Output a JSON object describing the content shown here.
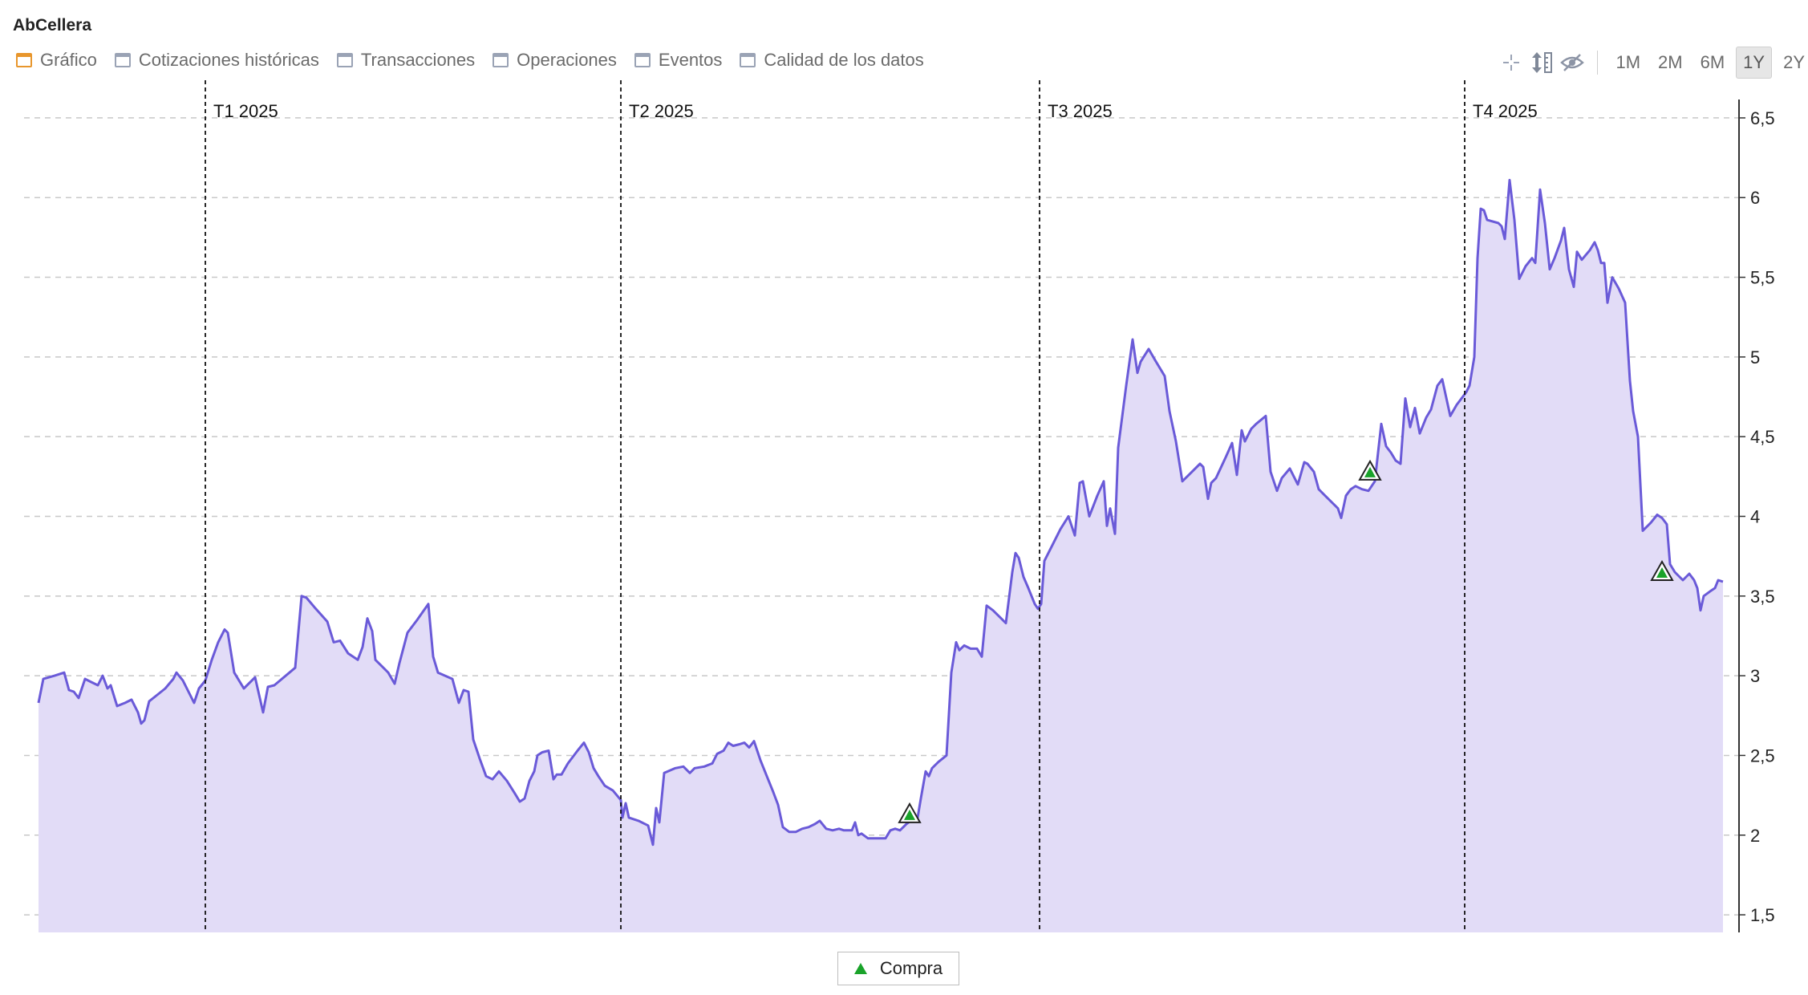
{
  "app": {
    "title": "AbCellera"
  },
  "tabs": [
    {
      "label": "Gráfico",
      "active": true
    },
    {
      "label": "Cotizaciones históricas",
      "active": false
    },
    {
      "label": "Transacciones",
      "active": false
    },
    {
      "label": "Operaciones",
      "active": false
    },
    {
      "label": "Eventos",
      "active": false
    },
    {
      "label": "Calidad de los datos",
      "active": false
    }
  ],
  "toolbar": {
    "icons": [
      "crosshair-icon",
      "vertical-scale-icon",
      "hide-icon"
    ],
    "ranges": [
      {
        "label": "1M",
        "active": false
      },
      {
        "label": "2M",
        "active": false
      },
      {
        "label": "6M",
        "active": false
      },
      {
        "label": "1Y",
        "active": true
      },
      {
        "label": "2Y",
        "active": false
      }
    ]
  },
  "legend": {
    "label": "Compra",
    "color": "#1aa32a"
  },
  "colors": {
    "line": "#6a5ad8",
    "fill": "#e2dcf7",
    "buy": "#1aa32a"
  },
  "chart_data": {
    "type": "area",
    "xlabel": "",
    "ylabel": "",
    "ylim": [
      1.45,
      6.55
    ],
    "xlim": [
      0,
      1050
    ],
    "y_ticks": [
      1.5,
      2,
      2.5,
      3,
      3.5,
      4,
      4.5,
      5,
      5.5,
      6,
      6.5
    ],
    "y_tick_labels": [
      "1,5",
      "2",
      "2,5",
      "3",
      "3,5",
      "4",
      "4,5",
      "5",
      "5,5",
      "6",
      "6,5"
    ],
    "grid": "horizontal-dashed",
    "quarters": [
      {
        "label": "T1 2025",
        "x": 104
      },
      {
        "label": "T2 2025",
        "x": 363
      },
      {
        "label": "T3 2025",
        "x": 624
      },
      {
        "label": "T4 2025",
        "x": 889
      }
    ],
    "series": [
      {
        "points": [
          [
            0,
            2.83
          ],
          [
            3,
            2.98
          ],
          [
            10,
            3.0
          ],
          [
            16,
            3.02
          ],
          [
            19,
            2.91
          ],
          [
            22,
            2.9
          ],
          [
            25,
            2.86
          ],
          [
            29,
            2.98
          ],
          [
            33,
            2.96
          ],
          [
            37,
            2.94
          ],
          [
            40,
            3.0
          ],
          [
            43,
            2.92
          ],
          [
            45,
            2.94
          ],
          [
            49,
            2.81
          ],
          [
            54,
            2.83
          ],
          [
            58,
            2.85
          ],
          [
            62,
            2.77
          ],
          [
            64,
            2.7
          ],
          [
            66,
            2.72
          ],
          [
            69,
            2.84
          ],
          [
            74,
            2.88
          ],
          [
            79,
            2.92
          ],
          [
            84,
            2.98
          ],
          [
            86,
            3.02
          ],
          [
            90,
            2.97
          ],
          [
            94,
            2.89
          ],
          [
            97,
            2.83
          ],
          [
            100,
            2.92
          ],
          [
            104,
            2.97
          ],
          [
            108,
            3.1
          ],
          [
            112,
            3.21
          ],
          [
            116,
            3.29
          ],
          [
            118,
            3.27
          ],
          [
            122,
            3.02
          ],
          [
            128,
            2.92
          ],
          [
            135,
            2.99
          ],
          [
            140,
            2.77
          ],
          [
            143,
            2.93
          ],
          [
            147,
            2.94
          ],
          [
            160,
            3.05
          ],
          [
            164,
            3.5
          ],
          [
            167,
            3.49
          ],
          [
            172,
            3.43
          ],
          [
            180,
            3.34
          ],
          [
            184,
            3.21
          ],
          [
            188,
            3.22
          ],
          [
            193,
            3.14
          ],
          [
            199,
            3.1
          ],
          [
            202,
            3.18
          ],
          [
            205,
            3.36
          ],
          [
            208,
            3.28
          ],
          [
            210,
            3.1
          ],
          [
            214,
            3.06
          ],
          [
            218,
            3.02
          ],
          [
            222,
            2.95
          ],
          [
            225,
            3.08
          ],
          [
            230,
            3.27
          ],
          [
            236,
            3.35
          ],
          [
            243,
            3.45
          ],
          [
            246,
            3.12
          ],
          [
            249,
            3.02
          ],
          [
            258,
            2.98
          ],
          [
            262,
            2.83
          ],
          [
            265,
            2.91
          ],
          [
            268,
            2.9
          ],
          [
            271,
            2.6
          ],
          [
            275,
            2.48
          ],
          [
            279,
            2.37
          ],
          [
            283,
            2.35
          ],
          [
            287,
            2.4
          ],
          [
            292,
            2.34
          ],
          [
            297,
            2.26
          ],
          [
            300,
            2.21
          ],
          [
            303,
            2.23
          ],
          [
            306,
            2.34
          ],
          [
            309,
            2.4
          ],
          [
            311,
            2.5
          ],
          [
            314,
            2.52
          ],
          [
            318,
            2.53
          ],
          [
            321,
            2.35
          ],
          [
            323,
            2.38
          ],
          [
            326,
            2.38
          ],
          [
            330,
            2.45
          ],
          [
            336,
            2.53
          ],
          [
            340,
            2.58
          ],
          [
            343,
            2.52
          ],
          [
            346,
            2.42
          ],
          [
            349,
            2.37
          ],
          [
            353,
            2.31
          ],
          [
            358,
            2.28
          ],
          [
            363,
            2.22
          ],
          [
            364,
            2.11
          ],
          [
            366,
            2.2
          ],
          [
            368,
            2.11
          ],
          [
            374,
            2.09
          ],
          [
            380,
            2.06
          ],
          [
            383,
            1.94
          ],
          [
            385,
            2.17
          ],
          [
            387,
            2.08
          ],
          [
            390,
            2.39
          ],
          [
            397,
            2.42
          ],
          [
            402,
            2.43
          ],
          [
            406,
            2.39
          ],
          [
            409,
            2.42
          ],
          [
            415,
            2.43
          ],
          [
            420,
            2.45
          ],
          [
            423,
            2.51
          ],
          [
            427,
            2.53
          ],
          [
            430,
            2.58
          ],
          [
            433,
            2.56
          ],
          [
            437,
            2.57
          ],
          [
            440,
            2.58
          ],
          [
            443,
            2.55
          ],
          [
            446,
            2.59
          ],
          [
            450,
            2.47
          ],
          [
            454,
            2.37
          ],
          [
            458,
            2.27
          ],
          [
            461,
            2.19
          ],
          [
            464,
            2.05
          ],
          [
            468,
            2.02
          ],
          [
            472,
            2.02
          ],
          [
            476,
            2.04
          ],
          [
            480,
            2.05
          ],
          [
            484,
            2.07
          ],
          [
            487,
            2.09
          ],
          [
            491,
            2.04
          ],
          [
            495,
            2.03
          ],
          [
            499,
            2.04
          ],
          [
            502,
            2.03
          ],
          [
            507,
            2.03
          ],
          [
            509,
            2.08
          ],
          [
            511,
            2.0
          ],
          [
            513,
            2.01
          ],
          [
            517,
            1.98
          ],
          [
            521,
            1.98
          ],
          [
            528,
            1.98
          ],
          [
            531,
            2.03
          ],
          [
            534,
            2.04
          ],
          [
            537,
            2.03
          ],
          [
            541,
            2.07
          ],
          [
            545,
            2.1
          ],
          [
            548,
            2.11
          ],
          [
            550,
            2.23
          ],
          [
            553,
            2.4
          ],
          [
            555,
            2.37
          ],
          [
            557,
            2.42
          ],
          [
            561,
            2.46
          ],
          [
            566,
            2.5
          ],
          [
            569,
            3.02
          ],
          [
            572,
            3.21
          ],
          [
            574,
            3.16
          ],
          [
            577,
            3.19
          ],
          [
            581,
            3.17
          ],
          [
            585,
            3.17
          ],
          [
            588,
            3.12
          ],
          [
            591,
            3.44
          ],
          [
            595,
            3.41
          ],
          [
            599,
            3.37
          ],
          [
            603,
            3.33
          ],
          [
            607,
            3.65
          ],
          [
            609,
            3.77
          ],
          [
            611,
            3.74
          ],
          [
            614,
            3.62
          ],
          [
            617,
            3.55
          ],
          [
            621,
            3.45
          ],
          [
            623,
            3.42
          ],
          [
            625,
            3.45
          ],
          [
            627,
            3.72
          ],
          [
            632,
            3.82
          ],
          [
            637,
            3.92
          ],
          [
            642,
            4.0
          ],
          [
            646,
            3.88
          ],
          [
            649,
            4.21
          ],
          [
            651,
            4.22
          ],
          [
            655,
            4.0
          ],
          [
            660,
            4.13
          ],
          [
            664,
            4.22
          ],
          [
            666,
            3.94
          ],
          [
            668,
            4.05
          ],
          [
            671,
            3.89
          ],
          [
            673,
            4.43
          ],
          [
            678,
            4.82
          ],
          [
            682,
            5.11
          ],
          [
            685,
            4.9
          ],
          [
            687,
            4.97
          ],
          [
            692,
            5.05
          ],
          [
            696,
            4.98
          ],
          [
            702,
            4.88
          ],
          [
            705,
            4.66
          ],
          [
            709,
            4.47
          ],
          [
            713,
            4.22
          ],
          [
            718,
            4.27
          ],
          [
            724,
            4.33
          ],
          [
            726,
            4.31
          ],
          [
            729,
            4.11
          ],
          [
            731,
            4.21
          ],
          [
            734,
            4.24
          ],
          [
            740,
            4.37
          ],
          [
            744,
            4.46
          ],
          [
            747,
            4.26
          ],
          [
            750,
            4.54
          ],
          [
            752,
            4.47
          ],
          [
            756,
            4.55
          ],
          [
            759,
            4.58
          ],
          [
            765,
            4.63
          ],
          [
            768,
            4.28
          ],
          [
            772,
            4.16
          ],
          [
            775,
            4.24
          ],
          [
            780,
            4.3
          ],
          [
            785,
            4.2
          ],
          [
            789,
            4.34
          ],
          [
            791,
            4.33
          ],
          [
            795,
            4.28
          ],
          [
            798,
            4.17
          ],
          [
            804,
            4.11
          ],
          [
            810,
            4.05
          ],
          [
            812,
            3.99
          ],
          [
            815,
            4.13
          ],
          [
            818,
            4.17
          ],
          [
            821,
            4.19
          ],
          [
            825,
            4.17
          ],
          [
            829,
            4.16
          ],
          [
            833,
            4.22
          ],
          [
            837,
            4.58
          ],
          [
            840,
            4.44
          ],
          [
            843,
            4.4
          ],
          [
            846,
            4.35
          ],
          [
            849,
            4.33
          ],
          [
            852,
            4.74
          ],
          [
            855,
            4.56
          ],
          [
            858,
            4.68
          ],
          [
            861,
            4.52
          ],
          [
            865,
            4.62
          ],
          [
            868,
            4.67
          ],
          [
            872,
            4.82
          ],
          [
            875,
            4.86
          ],
          [
            880,
            4.63
          ],
          [
            884,
            4.7
          ],
          [
            890,
            4.78
          ],
          [
            892,
            4.82
          ],
          [
            895,
            5.0
          ],
          [
            897,
            5.62
          ],
          [
            899,
            5.93
          ],
          [
            901,
            5.92
          ],
          [
            903,
            5.86
          ],
          [
            910,
            5.84
          ],
          [
            912,
            5.82
          ],
          [
            914,
            5.74
          ],
          [
            917,
            6.11
          ],
          [
            920,
            5.86
          ],
          [
            923,
            5.49
          ],
          [
            927,
            5.57
          ],
          [
            931,
            5.62
          ],
          [
            933,
            5.59
          ],
          [
            936,
            6.05
          ],
          [
            939,
            5.84
          ],
          [
            942,
            5.55
          ],
          [
            945,
            5.62
          ],
          [
            949,
            5.73
          ],
          [
            951,
            5.81
          ],
          [
            954,
            5.55
          ],
          [
            957,
            5.44
          ],
          [
            959,
            5.66
          ],
          [
            962,
            5.61
          ],
          [
            967,
            5.67
          ],
          [
            970,
            5.72
          ],
          [
            972,
            5.67
          ],
          [
            974,
            5.59
          ],
          [
            976,
            5.59
          ],
          [
            978,
            5.34
          ],
          [
            981,
            5.5
          ],
          [
            985,
            5.43
          ],
          [
            989,
            5.34
          ],
          [
            992,
            4.85
          ],
          [
            994,
            4.66
          ],
          [
            997,
            4.5
          ],
          [
            1000,
            3.91
          ],
          [
            1005,
            3.96
          ],
          [
            1009,
            4.01
          ],
          [
            1012,
            3.99
          ],
          [
            1015,
            3.95
          ],
          [
            1017,
            3.7
          ],
          [
            1020,
            3.65
          ],
          [
            1025,
            3.6
          ],
          [
            1029,
            3.64
          ],
          [
            1032,
            3.6
          ],
          [
            1034,
            3.55
          ],
          [
            1036,
            3.41
          ],
          [
            1038,
            3.5
          ],
          [
            1042,
            3.53
          ],
          [
            1045,
            3.55
          ],
          [
            1047,
            3.6
          ],
          [
            1050,
            3.59
          ]
        ]
      }
    ],
    "markers": [
      {
        "type": "Compra",
        "x": 543,
        "y": 2.13
      },
      {
        "type": "Compra",
        "x": 830,
        "y": 4.28
      },
      {
        "type": "Compra",
        "x": 1012,
        "y": 3.65
      }
    ]
  }
}
